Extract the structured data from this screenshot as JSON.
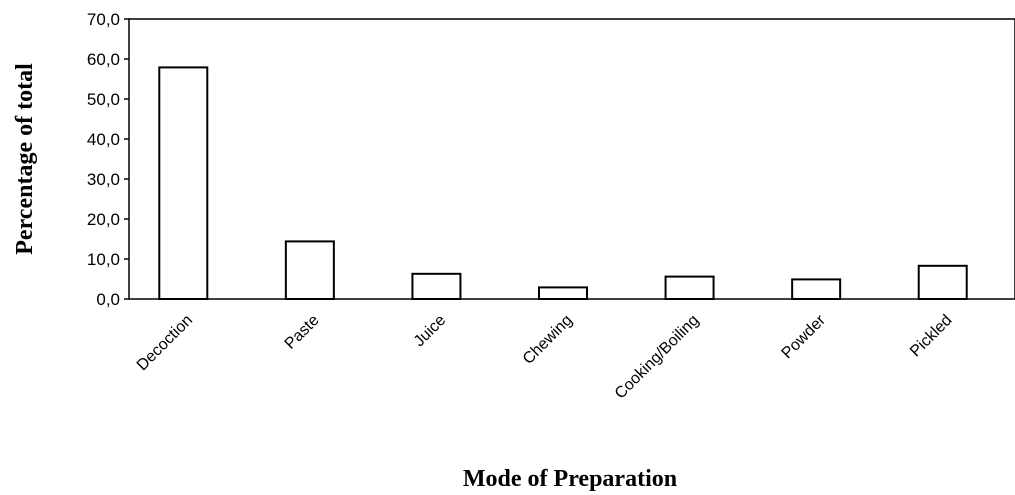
{
  "chart_data": {
    "type": "bar",
    "title": "",
    "xlabel": "Mode of Preparation",
    "ylabel": "Percentage of total",
    "categories": [
      "Decoction",
      "Paste",
      "Juice",
      "Chewing",
      "Cooking/Boiling",
      "Powder",
      "Pickled"
    ],
    "values": [
      57.9,
      14.4,
      6.3,
      2.9,
      5.6,
      4.9,
      8.3
    ],
    "ylim": [
      0,
      70
    ],
    "yticks": [
      "0,0",
      "10,0",
      "20,0",
      "30,0",
      "40,0",
      "50,0",
      "60,0",
      "70,0"
    ],
    "grid": false,
    "bar_fill": "#ffffff",
    "bar_stroke": "#000000"
  }
}
